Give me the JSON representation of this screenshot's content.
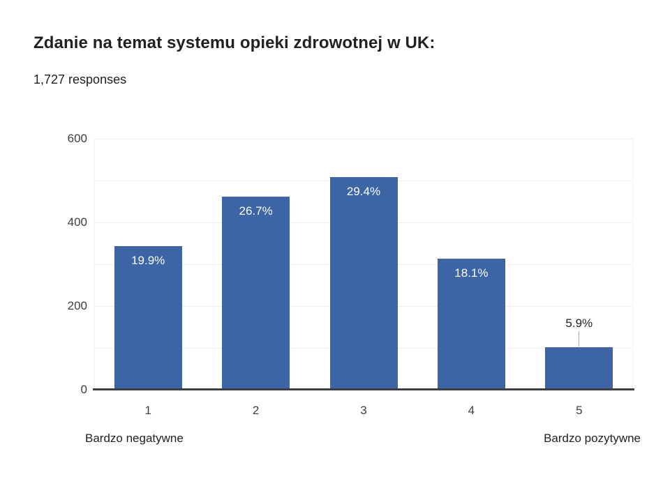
{
  "page": {
    "title": "Zdanie na temat systemu opieki zdrowotnej w UK:",
    "subtitle": "1,727 responses"
  },
  "chart_data": {
    "type": "bar",
    "title": "Zdanie na temat systemu opieki zdrowotnej w UK:",
    "subtitle": "1,727 responses",
    "total_responses": 1727,
    "categories": [
      "1",
      "2",
      "3",
      "4",
      "5"
    ],
    "values": [
      344,
      461,
      508,
      313,
      102
    ],
    "percent_labels": [
      "19.9%",
      "26.7%",
      "29.4%",
      "18.1%",
      "5.9%"
    ],
    "label_placement": [
      "inside",
      "inside",
      "inside",
      "inside",
      "above"
    ],
    "xlabel_left": "Bardzo negatywne",
    "xlabel_right": "Bardzo pozytywne",
    "ylim": [
      0,
      600
    ],
    "ytick_labels": [
      "0",
      "200",
      "400",
      "600"
    ],
    "gridline_interval": 100,
    "grid": "on",
    "legend": "none",
    "colors": {
      "bar": "#3d64a5",
      "label_inside": "#ffffff",
      "label_outside": "#212121",
      "gridline": "#eceef0",
      "axis_baseline": "#3c4043",
      "leader_line": "#a5a8ab",
      "text": "#202124"
    }
  }
}
